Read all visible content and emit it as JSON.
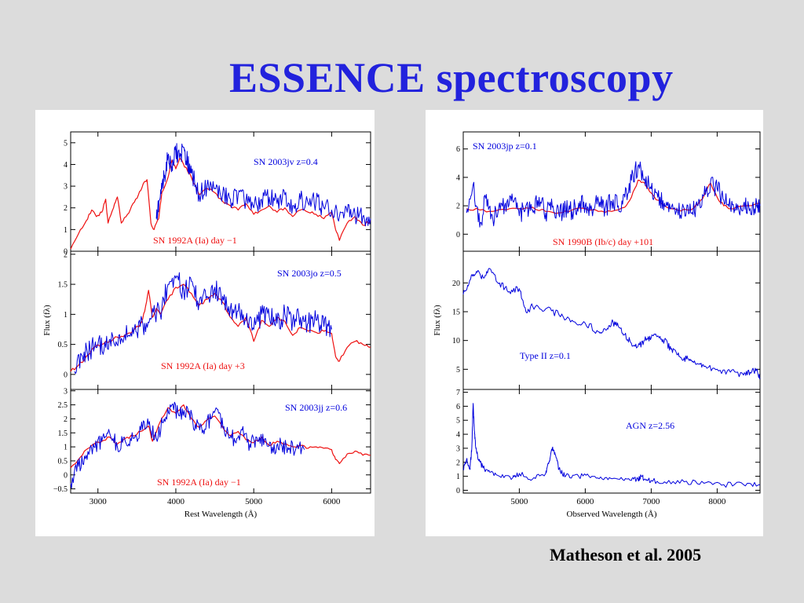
{
  "slide": {
    "title": "ESSENCE spectroscopy",
    "citation": "Matheson et al. 2005"
  },
  "colors": {
    "title": "#2222dd",
    "observed": "#0000dd",
    "template": "#ee1111",
    "background": "#dcdcdc"
  },
  "chart_data": [
    {
      "type": "line",
      "panel": "left-top",
      "xlim": [
        2650,
        6500
      ],
      "ylim": [
        0,
        5.5
      ],
      "yticks": [
        0,
        1,
        2,
        3,
        4,
        5
      ],
      "xlabel": "",
      "ylabel": "",
      "labels": {
        "observed": "SN 2003jv  z=0.4",
        "template": "SN 1992A (Ia) day −1"
      },
      "series": [
        {
          "role": "template",
          "x": [
            2650,
            2750,
            2850,
            2920,
            2980,
            3050,
            3100,
            3130,
            3200,
            3250,
            3300,
            3380,
            3450,
            3520,
            3580,
            3630,
            3680,
            3720,
            3780,
            3820,
            3900,
            3950,
            4000,
            4050,
            4100,
            4150,
            4200,
            4300,
            4400,
            4500,
            4600,
            4700,
            4800,
            4900,
            5000,
            5100,
            5200,
            5300,
            5400,
            5500,
            5600,
            5700,
            5800,
            5900,
            6000,
            6050,
            6100,
            6200,
            6300,
            6400,
            6500
          ],
          "y": [
            0.1,
            0.8,
            1.4,
            1.9,
            1.6,
            1.8,
            2.4,
            1.3,
            2.0,
            2.5,
            1.3,
            1.7,
            2.2,
            2.6,
            3.1,
            3.3,
            1.3,
            1.0,
            1.5,
            2.7,
            3.4,
            4.2,
            3.8,
            4.3,
            4.0,
            3.7,
            3.4,
            2.6,
            2.9,
            2.7,
            2.3,
            2.1,
            1.9,
            2.2,
            1.7,
            1.9,
            2.1,
            1.8,
            2.0,
            1.6,
            1.9,
            1.8,
            1.7,
            1.5,
            1.8,
            1.0,
            0.5,
            1.3,
            1.6,
            1.2,
            1.4
          ]
        },
        {
          "role": "observed",
          "x": [
            3750,
            3800,
            3850,
            3900,
            3950,
            4000,
            4050,
            4100,
            4150,
            4200,
            4300,
            4400,
            4500,
            4600,
            4700,
            4800,
            4900,
            5000,
            5100,
            5200,
            5300,
            5400,
            5500,
            5600,
            5700,
            5800,
            5900,
            6000,
            6100,
            6200,
            6300,
            6400,
            6500
          ],
          "y": [
            1.5,
            2.5,
            3.4,
            4.4,
            3.9,
            4.6,
            4.3,
            4.8,
            4.1,
            3.6,
            2.6,
            3.0,
            2.9,
            2.6,
            2.4,
            2.6,
            2.3,
            2.0,
            2.4,
            2.5,
            2.2,
            2.6,
            2.1,
            2.4,
            2.2,
            2.3,
            2.0,
            1.9,
            1.6,
            1.8,
            1.7,
            1.6,
            1.5
          ]
        }
      ]
    },
    {
      "type": "line",
      "panel": "left-middle",
      "xlim": [
        2650,
        6500
      ],
      "ylim": [
        -0.25,
        2.05
      ],
      "yticks": [
        0.0,
        0.5,
        1.0,
        1.5,
        2.0
      ],
      "xlabel": "",
      "ylabel": "Flux (fλ)",
      "labels": {
        "observed": "SN 2003jo z=0.5",
        "template": "SN 1992A (Ia) day +3"
      },
      "series": [
        {
          "role": "template",
          "x": [
            2650,
            2750,
            2850,
            2950,
            3050,
            3150,
            3250,
            3350,
            3450,
            3550,
            3600,
            3650,
            3700,
            3750,
            3800,
            3900,
            4000,
            4100,
            4200,
            4300,
            4400,
            4500,
            4600,
            4700,
            4800,
            4900,
            5000,
            5100,
            5200,
            5300,
            5400,
            5500,
            5600,
            5700,
            5800,
            5900,
            6000,
            6050,
            6100,
            6200,
            6300,
            6400,
            6500
          ],
          "y": [
            0.05,
            0.15,
            0.3,
            0.45,
            0.5,
            0.55,
            0.62,
            0.66,
            0.72,
            0.85,
            1.05,
            1.4,
            0.95,
            1.1,
            1.0,
            1.25,
            1.45,
            1.5,
            1.35,
            1.15,
            1.25,
            1.35,
            1.2,
            0.95,
            0.8,
            0.95,
            0.55,
            0.9,
            0.8,
            0.95,
            0.88,
            0.65,
            0.78,
            0.72,
            0.7,
            0.72,
            0.68,
            0.3,
            0.22,
            0.45,
            0.55,
            0.5,
            0.45
          ]
        },
        {
          "role": "observed",
          "x": [
            2700,
            2800,
            2900,
            3000,
            3100,
            3200,
            3300,
            3400,
            3500,
            3600,
            3700,
            3800,
            3900,
            4000,
            4100,
            4200,
            4300,
            4400,
            4500,
            4600,
            4700,
            4800,
            4900,
            5000,
            5100,
            5200,
            5300,
            5400,
            5500,
            5600,
            5700,
            5800,
            5900,
            6000
          ],
          "y": [
            0.05,
            0.3,
            0.4,
            0.5,
            0.45,
            0.55,
            0.6,
            0.65,
            0.7,
            0.85,
            1.1,
            1.0,
            1.5,
            1.6,
            1.4,
            1.55,
            1.2,
            1.3,
            1.45,
            1.3,
            1.1,
            1.05,
            0.9,
            0.75,
            1.0,
            0.95,
            0.85,
            1.0,
            0.9,
            0.95,
            0.85,
            0.9,
            0.8,
            0.75
          ]
        }
      ]
    },
    {
      "type": "line",
      "panel": "left-bottom",
      "xlim": [
        2650,
        6500
      ],
      "ylim": [
        -0.65,
        3.05
      ],
      "yticks": [
        -0.5,
        0.0,
        0.5,
        1.0,
        1.5,
        2.0,
        2.5,
        3.0
      ],
      "xticks": [
        3000,
        4000,
        5000,
        6000
      ],
      "xlabel": "Rest Wavelength (Å)",
      "ylabel": "",
      "labels": {
        "observed": "SN 2003jj z=0.6",
        "template": "SN 1992A (Ia) day −1"
      },
      "series": [
        {
          "role": "template",
          "x": [
            2650,
            2750,
            2850,
            2950,
            3050,
            3150,
            3250,
            3350,
            3450,
            3550,
            3650,
            3700,
            3800,
            3900,
            4000,
            4100,
            4200,
            4300,
            4400,
            4500,
            4600,
            4700,
            4800,
            4900,
            5000,
            5100,
            5200,
            5300,
            5400,
            5500,
            5600,
            5700,
            5800,
            5900,
            6000,
            6050,
            6100,
            6200,
            6300,
            6400,
            6500
          ],
          "y": [
            0.25,
            0.55,
            0.9,
            1.1,
            1.2,
            1.35,
            1.1,
            1.3,
            1.4,
            1.55,
            1.75,
            1.2,
            1.9,
            2.4,
            2.2,
            2.5,
            2.0,
            1.7,
            1.95,
            2.1,
            1.7,
            1.4,
            1.55,
            1.25,
            1.15,
            1.35,
            1.05,
            1.2,
            1.1,
            1.0,
            1.05,
            0.95,
            1.0,
            0.95,
            0.9,
            0.55,
            0.4,
            0.75,
            0.85,
            0.7,
            0.7
          ]
        },
        {
          "role": "observed",
          "x": [
            2650,
            2750,
            2850,
            2950,
            3050,
            3150,
            3250,
            3350,
            3450,
            3550,
            3650,
            3750,
            3850,
            3950,
            4050,
            4150,
            4250,
            4350,
            4450,
            4550,
            4650,
            4750,
            4850,
            4950,
            5050,
            5150,
            5250,
            5350,
            5450,
            5550,
            5650
          ],
          "y": [
            -0.3,
            0.3,
            0.7,
            1.0,
            1.2,
            1.5,
            1.0,
            1.2,
            1.3,
            1.6,
            1.8,
            1.3,
            2.0,
            2.5,
            2.1,
            2.4,
            1.8,
            1.6,
            2.0,
            2.2,
            1.5,
            1.3,
            1.6,
            1.1,
            1.2,
            1.3,
            0.8,
            1.1,
            0.9,
            1.0,
            0.9
          ]
        }
      ]
    },
    {
      "type": "line",
      "panel": "right-top",
      "xlim": [
        4150,
        8650
      ],
      "ylim": [
        -1.2,
        7.2
      ],
      "yticks": [
        0,
        2,
        4,
        6
      ],
      "xlabel": "",
      "ylabel": "",
      "labels": {
        "observed": "SN 2003jp  z=0.1",
        "template": "SN 1990B (Ib/c) day +101"
      },
      "series": [
        {
          "role": "template",
          "x": [
            4200,
            4400,
            4600,
            4800,
            5000,
            5200,
            5400,
            5600,
            5800,
            6000,
            6200,
            6400,
            6600,
            6700,
            6800,
            6900,
            7000,
            7100,
            7200,
            7400,
            7600,
            7700,
            7800,
            7900,
            8000,
            8100,
            8200,
            8400,
            8650
          ],
          "y": [
            1.8,
            1.7,
            1.6,
            1.7,
            1.8,
            1.9,
            1.6,
            1.5,
            1.7,
            1.8,
            1.6,
            1.6,
            1.9,
            2.6,
            3.8,
            3.6,
            2.9,
            2.4,
            2.0,
            1.7,
            1.7,
            2.1,
            2.7,
            3.6,
            2.6,
            2.0,
            1.8,
            2.0,
            2.2
          ]
        },
        {
          "role": "observed",
          "x": [
            4200,
            4300,
            4400,
            4500,
            4600,
            4700,
            4800,
            4900,
            5000,
            5100,
            5200,
            5300,
            5400,
            5500,
            5600,
            5700,
            5800,
            5900,
            6000,
            6100,
            6200,
            6300,
            6400,
            6500,
            6600,
            6700,
            6800,
            6900,
            7000,
            7100,
            7200,
            7300,
            7400,
            7500,
            7600,
            7700,
            7800,
            7900,
            8000,
            8100,
            8200,
            8300,
            8400,
            8500,
            8600,
            8650
          ],
          "y": [
            1.5,
            3.5,
            0.5,
            2.8,
            1.0,
            2.2,
            1.6,
            2.4,
            1.3,
            2.0,
            1.7,
            2.6,
            1.5,
            1.9,
            1.4,
            1.8,
            1.6,
            2.2,
            2.0,
            1.7,
            2.4,
            1.8,
            2.3,
            2.0,
            2.6,
            3.8,
            4.8,
            3.9,
            3.2,
            2.6,
            2.2,
            1.8,
            1.6,
            1.8,
            1.5,
            2.0,
            2.7,
            3.7,
            3.2,
            2.4,
            1.9,
            1.7,
            2.1,
            1.8,
            2.2,
            2.0
          ]
        }
      ]
    },
    {
      "type": "line",
      "panel": "right-middle",
      "xlim": [
        4150,
        8650
      ],
      "ylim": [
        1.5,
        25.5
      ],
      "yticks": [
        5,
        10,
        15,
        20
      ],
      "xlabel": "",
      "ylabel": "Flux (fλ)",
      "labels": {
        "observed": "Type II  z=0.1"
      },
      "series": [
        {
          "role": "observed",
          "x": [
            4150,
            4250,
            4350,
            4450,
            4550,
            4700,
            4850,
            5000,
            5100,
            5200,
            5400,
            5600,
            5800,
            6000,
            6200,
            6300,
            6400,
            6500,
            6600,
            6700,
            6800,
            6900,
            7000,
            7100,
            7200,
            7300,
            7400,
            7500,
            7600,
            7700,
            7800,
            8000,
            8200,
            8400,
            8500,
            8600,
            8650
          ],
          "y": [
            18,
            20.5,
            22,
            21,
            22.5,
            20,
            18.5,
            19,
            15,
            16,
            15.5,
            14.5,
            13.5,
            13,
            11.5,
            12,
            13.2,
            12.5,
            11,
            9.5,
            9,
            10,
            10.5,
            10.8,
            10,
            8.5,
            7.5,
            7,
            6.5,
            6,
            5.5,
            5,
            4.5,
            4.0,
            4.5,
            5.0,
            3.5
          ]
        }
      ]
    },
    {
      "type": "line",
      "panel": "right-bottom",
      "xlim": [
        4150,
        8650
      ],
      "ylim": [
        -0.2,
        7.2
      ],
      "yticks": [
        0,
        1,
        2,
        3,
        4,
        5,
        6,
        7
      ],
      "xticks": [
        5000,
        6000,
        7000,
        8000
      ],
      "xlabel": "Observed Wavelength (Å)",
      "ylabel": "",
      "labels": {
        "observed": "AGN   z=2.56"
      },
      "series": [
        {
          "role": "observed",
          "x": [
            4150,
            4200,
            4250,
            4280,
            4300,
            4320,
            4340,
            4380,
            4450,
            4550,
            4700,
            4900,
            5000,
            5200,
            5400,
            5450,
            5500,
            5550,
            5600,
            5700,
            5900,
            6100,
            6300,
            6500,
            6700,
            6800,
            6850,
            6900,
            7000,
            7200,
            7500,
            7800,
            8100,
            8400,
            8650
          ],
          "y": [
            1.5,
            2.2,
            1.5,
            3.0,
            6.2,
            4.2,
            3.0,
            2.2,
            1.6,
            1.3,
            1.0,
            0.9,
            1.2,
            0.8,
            1.2,
            2.0,
            3.0,
            2.5,
            1.5,
            1.0,
            1.0,
            1.0,
            0.9,
            0.8,
            0.7,
            0.8,
            1.0,
            0.8,
            0.7,
            0.6,
            0.6,
            0.5,
            0.4,
            0.4,
            0.4
          ]
        }
      ]
    }
  ]
}
